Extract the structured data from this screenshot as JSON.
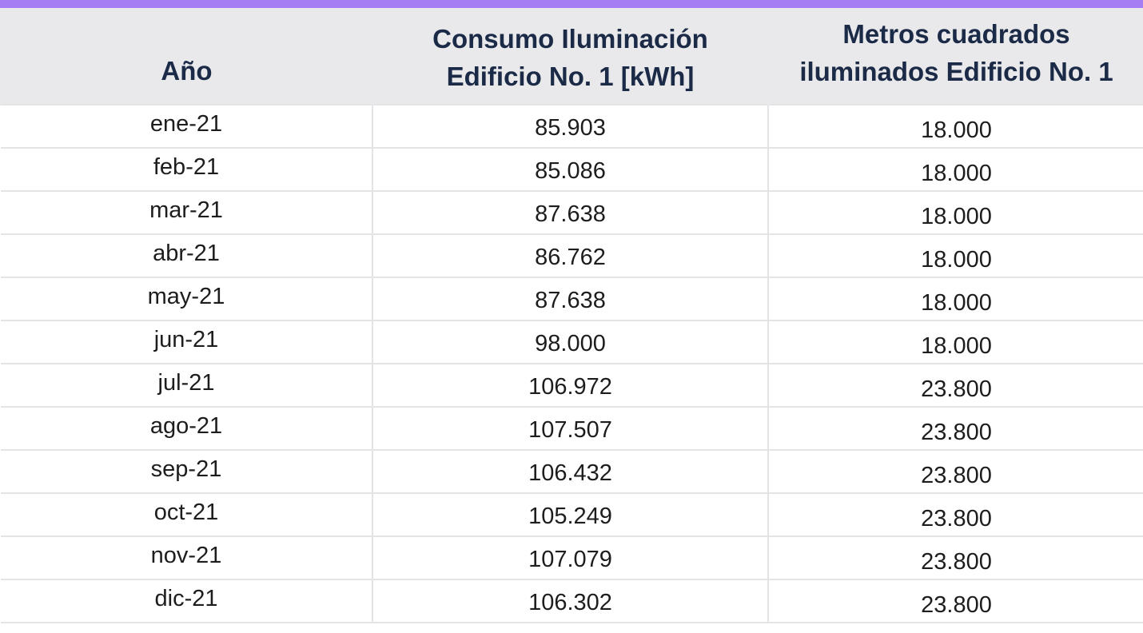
{
  "colors": {
    "accent_bar": "#a57ef3",
    "header_bg": "#e9e9eb",
    "header_text": "#1b2a47",
    "grid_lines": "#e4e4e6"
  },
  "table": {
    "headers": {
      "year": "Año",
      "consumo_line1": "Consumo Iluminación",
      "consumo_line2": "Edificio No. 1 [kWh]",
      "metros_line1": "Metros cuadrados",
      "metros_line2": "iluminados Edificio No. 1"
    },
    "rows": [
      {
        "year": "ene-21",
        "consumo": "85.903",
        "metros": "18.000"
      },
      {
        "year": "feb-21",
        "consumo": "85.086",
        "metros": "18.000"
      },
      {
        "year": "mar-21",
        "consumo": "87.638",
        "metros": "18.000"
      },
      {
        "year": "abr-21",
        "consumo": "86.762",
        "metros": "18.000"
      },
      {
        "year": "may-21",
        "consumo": "87.638",
        "metros": "18.000"
      },
      {
        "year": "jun-21",
        "consumo": "98.000",
        "metros": "18.000"
      },
      {
        "year": "jul-21",
        "consumo": "106.972",
        "metros": "23.800"
      },
      {
        "year": "ago-21",
        "consumo": "107.507",
        "metros": "23.800"
      },
      {
        "year": "sep-21",
        "consumo": "106.432",
        "metros": "23.800"
      },
      {
        "year": "oct-21",
        "consumo": "105.249",
        "metros": "23.800"
      },
      {
        "year": "nov-21",
        "consumo": "107.079",
        "metros": "23.800"
      },
      {
        "year": "dic-21",
        "consumo": "106.302",
        "metros": "23.800"
      }
    ]
  }
}
